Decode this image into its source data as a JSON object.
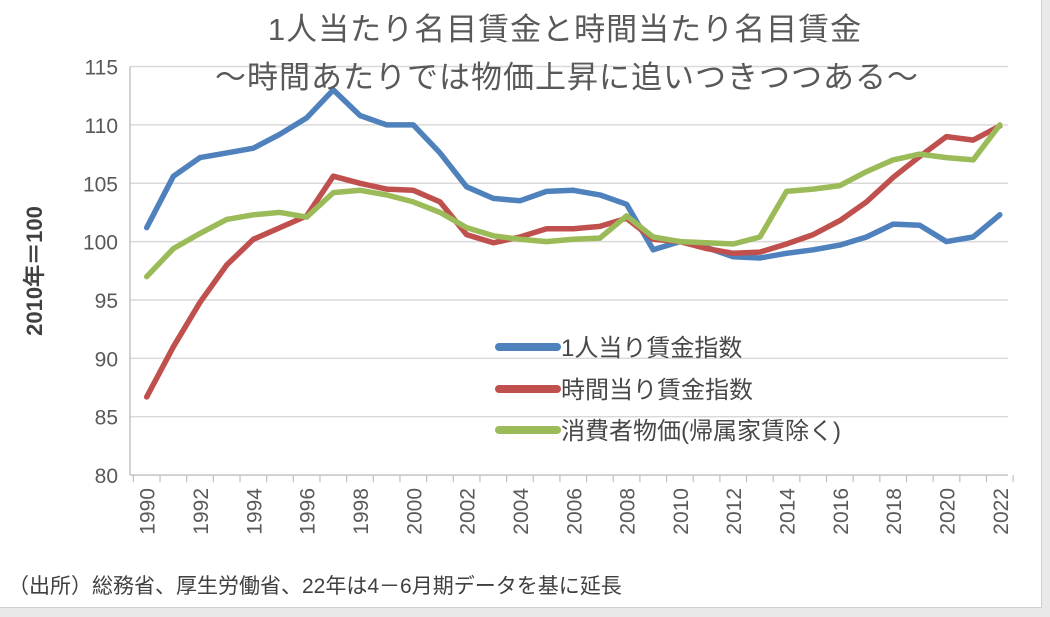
{
  "title": {
    "line1": "1人当たり名目賃金と時間当たり名目賃金",
    "line2": "～時間あたりでは物価上昇に追いつきつつある～"
  },
  "y_axis_title": "2010年＝100",
  "source_note": "（出所）総務省、厚生労働省、22年は4－6月期データを基に延長",
  "colors": {
    "per_capita_wage": "#4F81BD",
    "hourly_wage": "#C0504D",
    "cpi": "#9BBB59",
    "gridline": "#D9D9D9",
    "axis": "#BFBFBF",
    "tick_text": "#595959",
    "title_text": "#595959",
    "footer_text": "#404040"
  },
  "chart_data": {
    "type": "line",
    "title": "1人当たり名目賃金と時間当たり名目賃金 ～時間あたりでは物価上昇に追いつきつつある～",
    "xlabel": "",
    "ylabel": "2010年＝100",
    "ylim": [
      80,
      115
    ],
    "yticks": [
      80,
      85,
      90,
      95,
      100,
      105,
      110,
      115
    ],
    "grid": "horizontal",
    "legend_position": "inside-center",
    "x": [
      1990,
      1991,
      1992,
      1993,
      1994,
      1995,
      1996,
      1997,
      1998,
      1999,
      2000,
      2001,
      2002,
      2003,
      2004,
      2005,
      2006,
      2007,
      2008,
      2009,
      2010,
      2011,
      2012,
      2013,
      2014,
      2015,
      2016,
      2017,
      2018,
      2019,
      2020,
      2021,
      2022
    ],
    "x_tick_labels": [
      "1990",
      "1992",
      "1994",
      "1996",
      "1998",
      "2000",
      "2002",
      "2004",
      "2006",
      "2008",
      "2010",
      "2012",
      "2014",
      "2016",
      "2018",
      "2020",
      "2022"
    ],
    "series": [
      {
        "name": "1人当り賃金指数",
        "color": "#4F81BD",
        "values": [
          101.2,
          105.6,
          107.2,
          107.6,
          108.0,
          109.2,
          110.6,
          113.0,
          110.8,
          110.0,
          110.0,
          107.6,
          104.7,
          103.7,
          103.5,
          104.3,
          104.4,
          104.0,
          103.2,
          99.3,
          100.0,
          99.5,
          98.7,
          98.6,
          99.0,
          99.3,
          99.7,
          100.4,
          101.5,
          101.4,
          100.0,
          100.4,
          102.3
        ]
      },
      {
        "name": "時間当り賃金指数",
        "color": "#C0504D",
        "values": [
          86.7,
          91.0,
          94.8,
          98.0,
          100.2,
          101.2,
          102.2,
          105.6,
          105.0,
          104.5,
          104.4,
          103.4,
          100.6,
          99.9,
          100.4,
          101.1,
          101.1,
          101.3,
          102.0,
          100.2,
          100.0,
          99.4,
          99.0,
          99.1,
          99.8,
          100.6,
          101.8,
          103.4,
          105.5,
          107.3,
          109.0,
          108.7,
          109.9
        ]
      },
      {
        "name": "消費者物価(帰属家賃除く)",
        "color": "#9BBB59",
        "values": [
          97.0,
          99.4,
          100.7,
          101.9,
          102.3,
          102.5,
          102.1,
          104.2,
          104.4,
          104.0,
          103.4,
          102.5,
          101.2,
          100.5,
          100.2,
          100.0,
          100.2,
          100.3,
          102.2,
          100.4,
          100.0,
          99.9,
          99.8,
          100.4,
          104.3,
          104.5,
          104.8,
          106.0,
          107.0,
          107.5,
          107.2,
          107.0,
          110.0
        ]
      }
    ]
  }
}
